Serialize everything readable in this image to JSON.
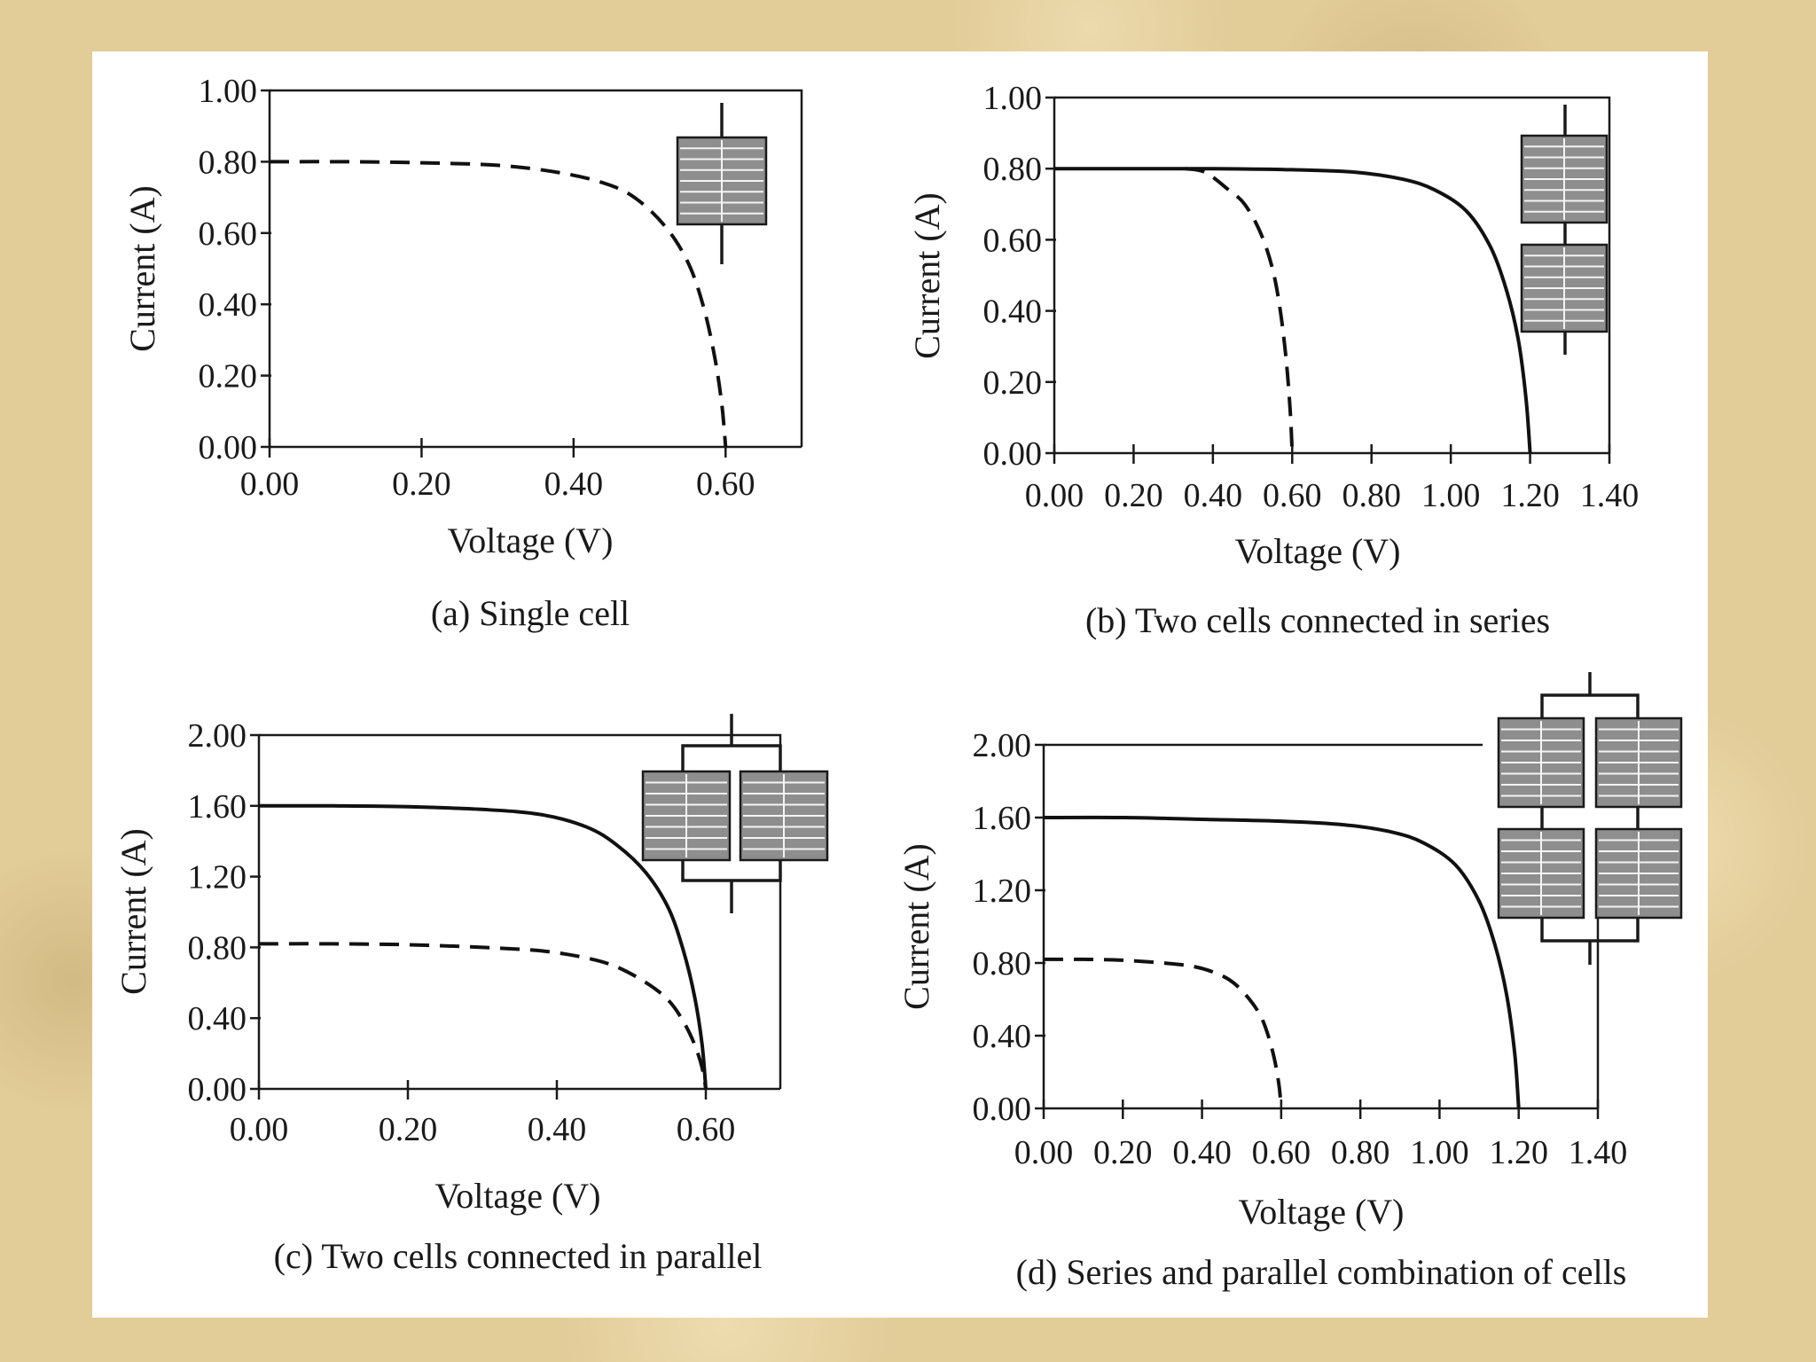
{
  "colors": {
    "page_background": "#e2cc98",
    "figure_background": "#ffffff",
    "ink": "#1a1a1a"
  },
  "chart_data": [
    {
      "id": "a",
      "type": "line",
      "caption": "(a) Single cell",
      "xlabel": "Voltage (V)",
      "ylabel": "Current (A)",
      "xlim": [
        0,
        0.7
      ],
      "ylim": [
        0,
        1.0
      ],
      "xticks": [
        "0.00",
        "0.20",
        "0.40",
        "0.60"
      ],
      "yticks": [
        "0.00",
        "0.20",
        "0.40",
        "0.60",
        "0.80",
        "1.00"
      ],
      "grid": false,
      "inset_icon": "single-cell-icon",
      "series": [
        {
          "style": "dashed",
          "x": [
            0,
            0.1,
            0.2,
            0.3,
            0.38,
            0.44,
            0.48,
            0.52,
            0.55,
            0.57,
            0.585,
            0.595,
            0.6
          ],
          "y": [
            0.8,
            0.8,
            0.797,
            0.79,
            0.77,
            0.74,
            0.7,
            0.62,
            0.52,
            0.4,
            0.26,
            0.12,
            0.0
          ]
        }
      ]
    },
    {
      "id": "b",
      "type": "line",
      "caption": "(b) Two cells connected in series",
      "xlabel": "Voltage (V)",
      "ylabel": "Current (A)",
      "xlim": [
        0,
        1.4
      ],
      "ylim": [
        0,
        1.0
      ],
      "xticks": [
        "0.00",
        "0.20",
        "0.40",
        "0.60",
        "0.80",
        "1.00",
        "1.20",
        "1.40"
      ],
      "yticks": [
        "0.00",
        "0.20",
        "0.40",
        "0.60",
        "0.80",
        "1.00"
      ],
      "grid": false,
      "inset_icon": "series-cells-icon",
      "series": [
        {
          "style": "dashed",
          "x": [
            0.33,
            0.38,
            0.44,
            0.48,
            0.52,
            0.55,
            0.57,
            0.585,
            0.595,
            0.6
          ],
          "y": [
            0.8,
            0.79,
            0.74,
            0.7,
            0.62,
            0.52,
            0.4,
            0.26,
            0.12,
            0.0
          ]
        },
        {
          "style": "solid",
          "x": [
            0,
            0.2,
            0.4,
            0.6,
            0.76,
            0.88,
            0.96,
            1.04,
            1.1,
            1.14,
            1.17,
            1.19,
            1.2
          ],
          "y": [
            0.8,
            0.8,
            0.8,
            0.797,
            0.79,
            0.77,
            0.74,
            0.68,
            0.58,
            0.46,
            0.32,
            0.15,
            0.0
          ]
        }
      ]
    },
    {
      "id": "c",
      "type": "line",
      "caption": "(c) Two cells connected in parallel",
      "xlabel": "Voltage (V)",
      "ylabel": "Current (A)",
      "xlim": [
        0,
        0.7
      ],
      "ylim": [
        0,
        2.0
      ],
      "xticks": [
        "0.00",
        "0.20",
        "0.40",
        "0.60"
      ],
      "yticks": [
        "0.00",
        "0.40",
        "0.80",
        "1.20",
        "1.60",
        "2.00"
      ],
      "grid": false,
      "inset_icon": "parallel-cells-icon",
      "series": [
        {
          "style": "dashed",
          "x": [
            0,
            0.1,
            0.2,
            0.3,
            0.38,
            0.44,
            0.48,
            0.52,
            0.55,
            0.57,
            0.585,
            0.595,
            0.6
          ],
          "y": [
            0.82,
            0.82,
            0.815,
            0.8,
            0.78,
            0.74,
            0.69,
            0.6,
            0.5,
            0.38,
            0.25,
            0.12,
            0.0
          ]
        },
        {
          "style": "solid",
          "x": [
            0,
            0.1,
            0.2,
            0.3,
            0.38,
            0.44,
            0.48,
            0.52,
            0.55,
            0.57,
            0.585,
            0.595,
            0.6
          ],
          "y": [
            1.6,
            1.6,
            1.595,
            1.58,
            1.55,
            1.48,
            1.38,
            1.22,
            1.02,
            0.78,
            0.52,
            0.25,
            0.0
          ]
        }
      ]
    },
    {
      "id": "d",
      "type": "line",
      "caption": "(d) Series and parallel combination of cells",
      "xlabel": "Voltage (V)",
      "ylabel": "Current (A)",
      "xlim": [
        0,
        1.4
      ],
      "ylim": [
        0,
        2.0
      ],
      "xticks": [
        "0.00",
        "0.20",
        "0.40",
        "0.60",
        "0.80",
        "1.00",
        "1.20",
        "1.40"
      ],
      "yticks": [
        "0.00",
        "0.40",
        "0.80",
        "1.20",
        "1.60",
        "2.00"
      ],
      "grid": false,
      "inset_icon": "series-parallel-cells-icon",
      "series": [
        {
          "style": "dashed",
          "x": [
            0,
            0.1,
            0.2,
            0.3,
            0.38,
            0.44,
            0.48,
            0.52,
            0.55,
            0.57,
            0.585,
            0.595,
            0.6
          ],
          "y": [
            0.82,
            0.82,
            0.815,
            0.8,
            0.78,
            0.74,
            0.69,
            0.6,
            0.5,
            0.38,
            0.25,
            0.12,
            0.0
          ]
        },
        {
          "style": "solid",
          "x": [
            0,
            0.2,
            0.4,
            0.6,
            0.76,
            0.88,
            0.96,
            1.04,
            1.1,
            1.14,
            1.17,
            1.19,
            1.2
          ],
          "y": [
            1.6,
            1.6,
            1.59,
            1.58,
            1.56,
            1.52,
            1.46,
            1.34,
            1.14,
            0.9,
            0.62,
            0.3,
            0.0
          ]
        }
      ]
    }
  ]
}
